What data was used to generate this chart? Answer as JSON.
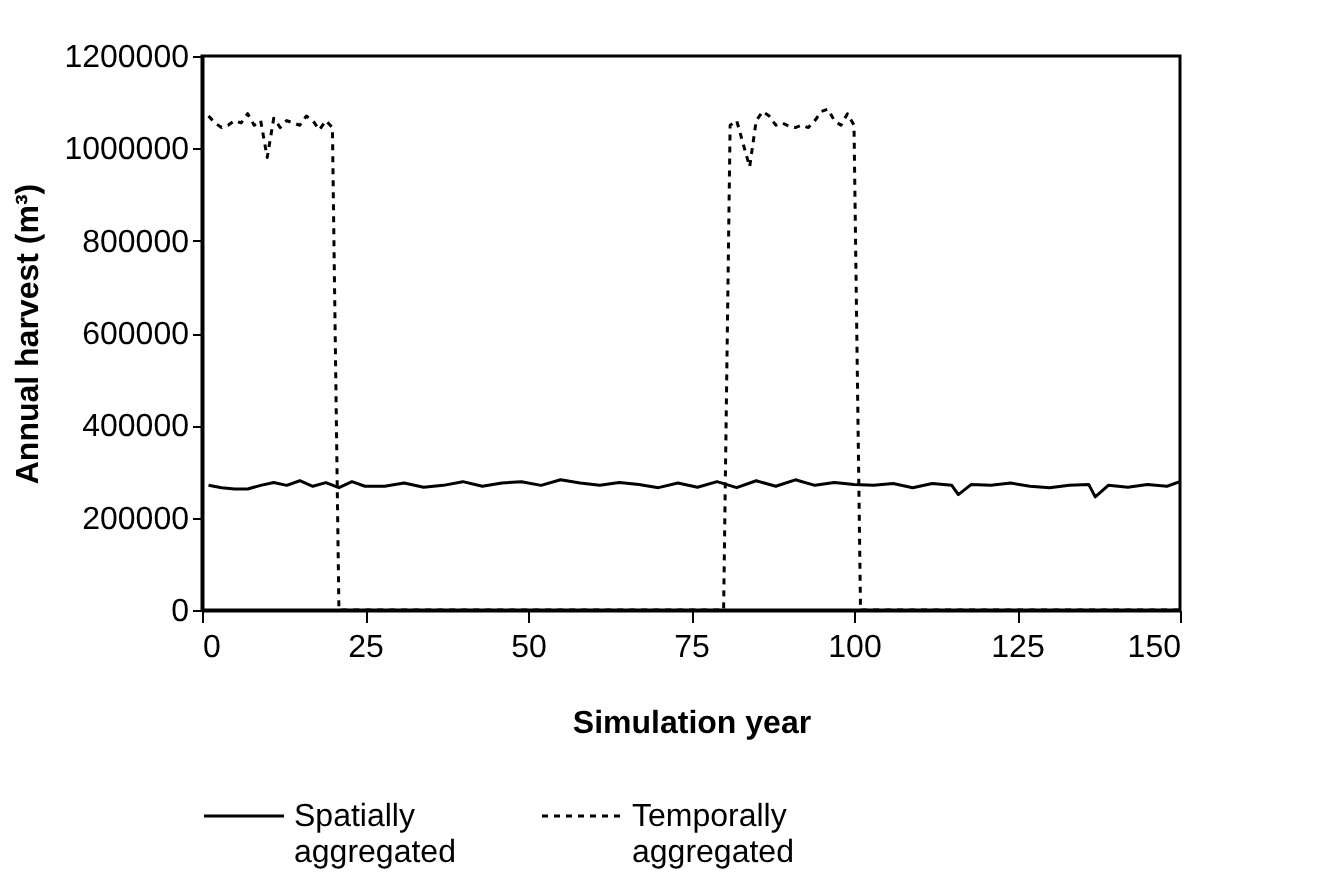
{
  "chart_data": {
    "type": "line",
    "xlabel": "Simulation year",
    "ylabel": "Annual harvest (m³)",
    "xlim": [
      0,
      150
    ],
    "xticks": [
      0,
      25,
      50,
      75,
      100,
      125,
      150
    ],
    "ylim": [
      0,
      1200000
    ],
    "yticks": [
      0,
      200000,
      400000,
      600000,
      800000,
      1000000,
      1200000
    ],
    "grid": false,
    "legend": "bottom",
    "marker": "none",
    "series": [
      {
        "name": "Spatially aggregated",
        "color": "#000000",
        "line_style": "solid",
        "x": [
          1,
          3,
          5,
          7,
          9,
          11,
          13,
          15,
          17,
          19,
          21,
          23,
          25,
          28,
          31,
          34,
          37,
          40,
          43,
          46,
          49,
          52,
          55,
          58,
          61,
          64,
          67,
          70,
          73,
          76,
          79,
          82,
          85,
          88,
          91,
          94,
          97,
          100,
          103,
          106,
          109,
          112,
          115,
          116,
          118,
          121,
          124,
          127,
          130,
          133,
          136,
          137,
          139,
          142,
          145,
          148,
          150
        ],
        "values": [
          270000,
          265000,
          262000,
          262000,
          270000,
          276000,
          270000,
          280000,
          268000,
          276000,
          265000,
          278000,
          268000,
          268000,
          275000,
          266000,
          270000,
          278000,
          268000,
          275000,
          278000,
          270000,
          282000,
          275000,
          270000,
          276000,
          272000,
          265000,
          275000,
          266000,
          278000,
          265000,
          280000,
          268000,
          282000,
          270000,
          276000,
          272000,
          270000,
          274000,
          265000,
          274000,
          270000,
          250000,
          272000,
          270000,
          275000,
          268000,
          265000,
          270000,
          272000,
          245000,
          270000,
          266000,
          272000,
          268000,
          278000
        ]
      },
      {
        "name": "Temporally aggregated",
        "color": "#000000",
        "line_style": "dashed",
        "x": [
          1,
          2,
          3,
          4,
          5,
          6,
          7,
          8,
          9,
          10,
          11,
          12,
          13,
          14,
          15,
          16,
          17,
          18,
          19,
          20,
          21,
          50,
          79,
          80,
          81,
          82,
          83,
          84,
          85,
          86,
          87,
          88,
          89,
          90,
          91,
          92,
          93,
          94,
          95,
          96,
          97,
          98,
          99,
          100,
          101,
          125,
          150
        ],
        "values": [
          1070000,
          1055000,
          1045000,
          1050000,
          1060000,
          1055000,
          1075000,
          1050000,
          1060000,
          980000,
          1065000,
          1045000,
          1060000,
          1055000,
          1050000,
          1070000,
          1060000,
          1040000,
          1060000,
          1045000,
          0,
          0,
          0,
          0,
          1050000,
          1060000,
          1010000,
          960000,
          1060000,
          1080000,
          1070000,
          1050000,
          1055000,
          1048000,
          1045000,
          1050000,
          1045000,
          1060000,
          1080000,
          1085000,
          1060000,
          1050000,
          1075000,
          1050000,
          0,
          0,
          0
        ]
      }
    ]
  }
}
